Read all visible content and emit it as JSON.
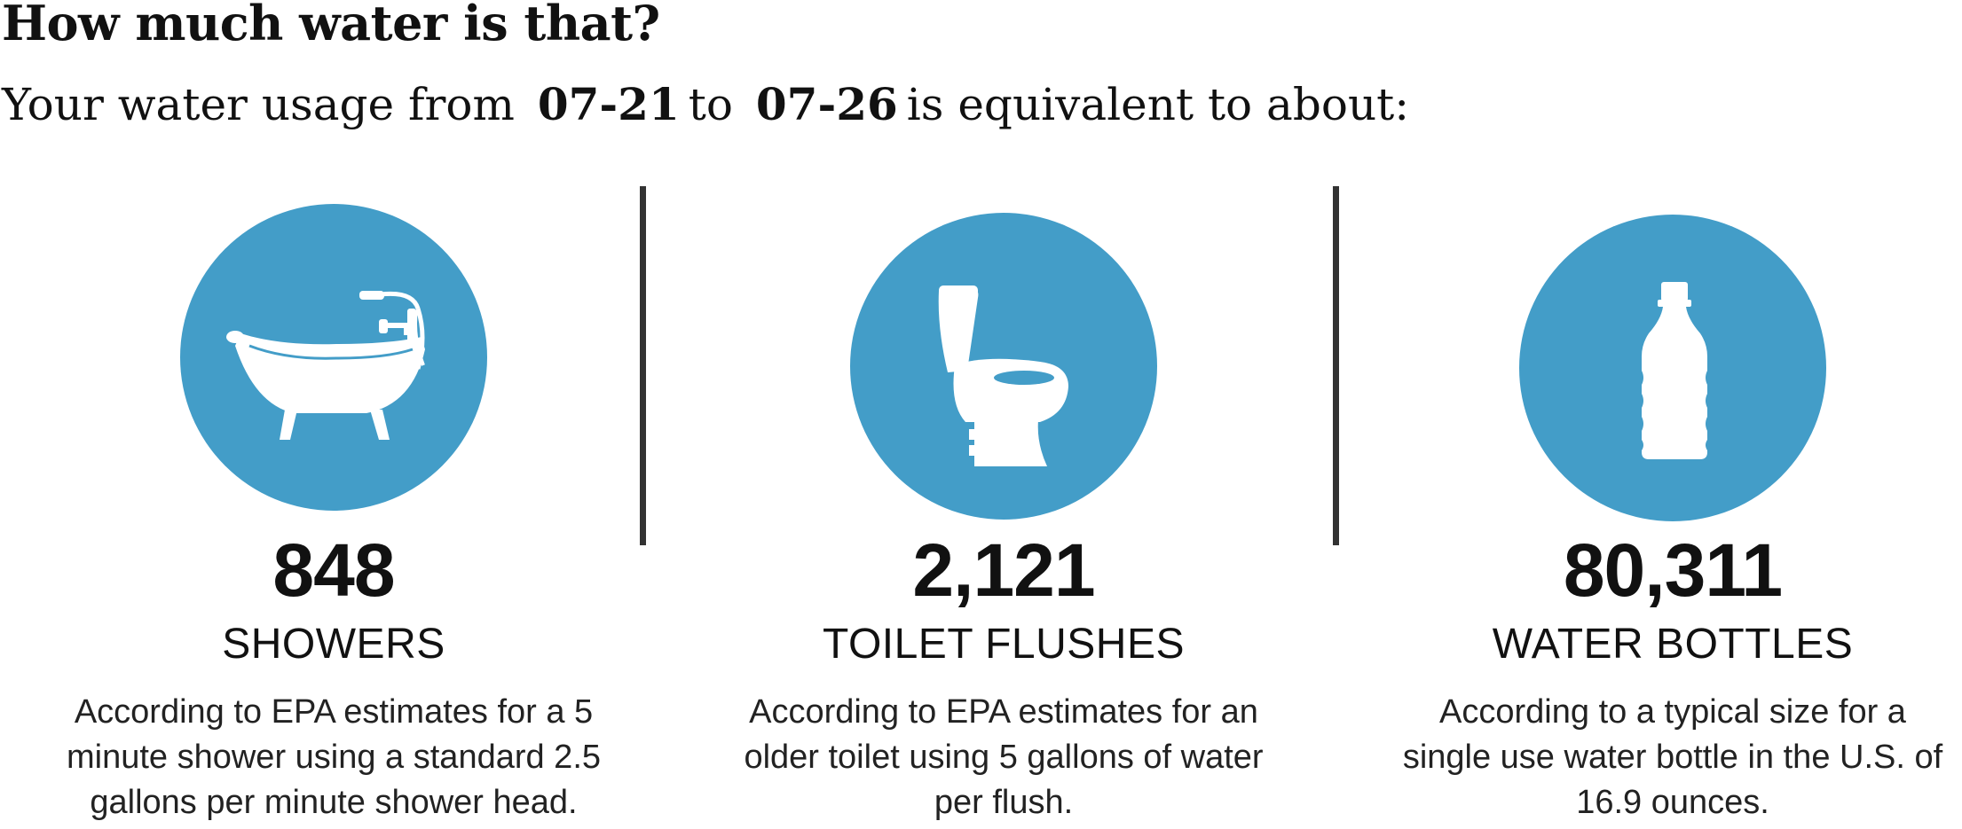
{
  "header": {
    "title": "How much water is that?",
    "subtitle_prefix": "Your water usage from",
    "start_date": "07-21",
    "connector": "to",
    "end_date": "07-26",
    "subtitle_suffix": "is equivalent to about:"
  },
  "colors": {
    "circle": "#439dc8",
    "divider": "#333333",
    "text": "#111111"
  },
  "cards": [
    {
      "icon": "bathtub-icon",
      "value": "848",
      "label": "SHOWERS",
      "desc": [
        "According to EPA estimates for a 5",
        "minute shower using a standard 2.5",
        "gallons per minute shower head."
      ]
    },
    {
      "icon": "toilet-icon",
      "value": "2,121",
      "label": "TOILET FLUSHES",
      "desc": [
        "According to EPA estimates for an",
        "older toilet using 5 gallons of water",
        "per flush."
      ]
    },
    {
      "icon": "water-bottle-icon",
      "value": "80,311",
      "label": "WATER BOTTLES",
      "desc": [
        "According to a typical size for a",
        "single use water bottle in the U.S. of",
        "16.9 ounces."
      ]
    }
  ]
}
